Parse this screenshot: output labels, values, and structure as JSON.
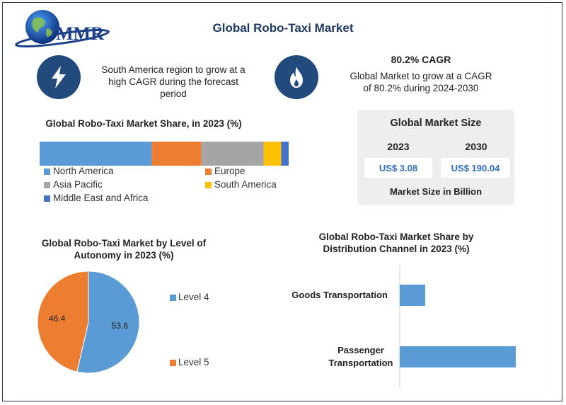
{
  "header": {
    "logo_text": "MMR",
    "title": "Global Robo-Taxi Market"
  },
  "highlights": {
    "left": {
      "icon": "lightning-bolt-icon",
      "lines": [
        "South America region to grow at a",
        "high CAGR during the forecast",
        "period"
      ]
    },
    "right": {
      "icon": "flame-icon",
      "heading": "80.2% CAGR",
      "lines": [
        "Global Market to grow at a CAGR",
        "of 80.2% during 2024-2030"
      ]
    }
  },
  "market_size": {
    "title": "Global Market Size",
    "year1": "2023",
    "year2": "2030",
    "value1": "US$ 3.08",
    "value2": "US$ 190.04",
    "footer": "Market Size in Billion"
  },
  "colors": {
    "blue": "#5b9bd5",
    "orange": "#ed7d31",
    "gray": "#a5a5a5",
    "yellow": "#ffc000",
    "darkblue": "#4472c4",
    "icon_bg": "#234a7c",
    "title": "#1f3864"
  },
  "chart_data": [
    {
      "type": "bar",
      "orientation": "horizontal-stacked",
      "title": "Global Robo-Taxi Market Share, in 2023 (%)",
      "series": [
        {
          "name": "North America",
          "values": [
            45
          ]
        },
        {
          "name": "Europe",
          "values": [
            20
          ]
        },
        {
          "name": "Asia Pacific",
          "values": [
            25
          ]
        },
        {
          "name": "South America",
          "values": [
            7
          ]
        },
        {
          "name": "Middle East and Africa",
          "values": [
            3
          ]
        }
      ],
      "legend_position": "bottom"
    },
    {
      "type": "pie",
      "title_lines": [
        "Global Robo-Taxi Market by Level of",
        "Autonomy in 2023 (%)"
      ],
      "labels": [
        "Level 4",
        "Level 5"
      ],
      "values": [
        53.6,
        46.4
      ],
      "legend_position": "right"
    },
    {
      "type": "bar",
      "orientation": "horizontal",
      "title_lines": [
        "Global Robo-Taxi Market Share by",
        "Distribution  Channel in 2023 (%)"
      ],
      "categories": [
        [
          "Goods Transportation"
        ],
        [
          "Passenger",
          "Transportation"
        ]
      ],
      "values": [
        18,
        82
      ],
      "xlim": [
        0,
        100
      ]
    }
  ]
}
